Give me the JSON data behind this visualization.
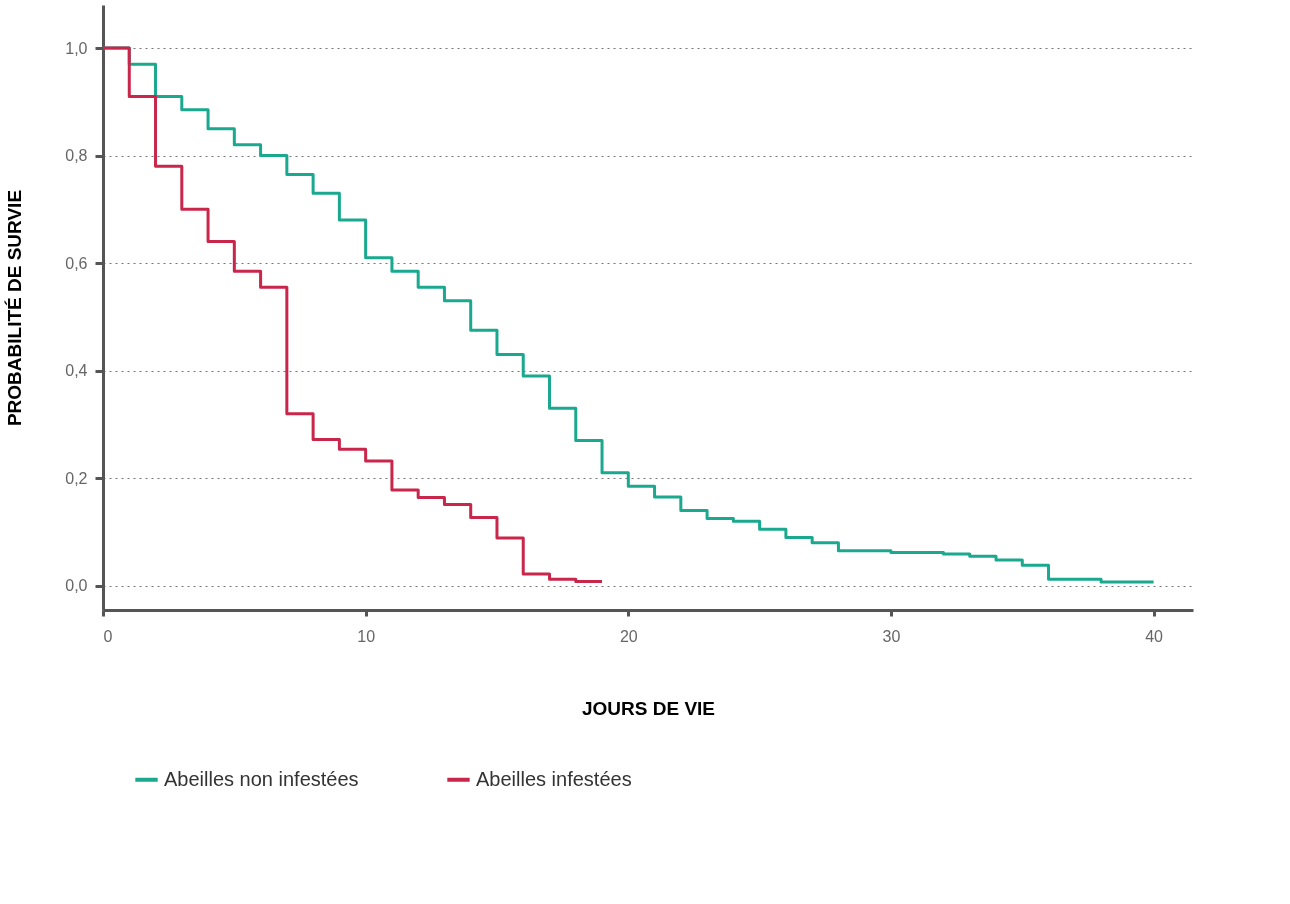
{
  "chart_data": {
    "type": "step",
    "xlabel": "JOURS DE VIE",
    "ylabel": "PROBABILITÉ DE SURVIE",
    "xlim": [
      0,
      41.5
    ],
    "xticks": [
      0,
      10,
      20,
      30,
      40
    ],
    "ylim": [
      -0.045,
      1.08
    ],
    "yticks": [
      {
        "value": 0,
        "label": "0,0"
      },
      {
        "value": 0.2,
        "label": "0,2"
      },
      {
        "value": 0.4,
        "label": "0,4"
      },
      {
        "value": 0.6,
        "label": "0,6"
      },
      {
        "value": 0.8,
        "label": "0,8"
      },
      {
        "value": 1.0,
        "label": "1,0"
      }
    ],
    "grid": "y",
    "legend": "bottom",
    "line_style": "solid",
    "marker": "none",
    "series": [
      {
        "name": "Abeilles non infestées",
        "color": "#1aa88e",
        "x": [
          0,
          1,
          2,
          3,
          4,
          5,
          6,
          7,
          8,
          9,
          10,
          11,
          12,
          13,
          14,
          15,
          16,
          17,
          18,
          19,
          20,
          21,
          22,
          23,
          24,
          25,
          26,
          27,
          28,
          30,
          32,
          33,
          34,
          35,
          36,
          38,
          40
        ],
        "values": [
          1.0,
          0.97,
          0.91,
          0.885,
          0.85,
          0.82,
          0.8,
          0.765,
          0.73,
          0.68,
          0.61,
          0.585,
          0.555,
          0.53,
          0.475,
          0.43,
          0.39,
          0.33,
          0.27,
          0.21,
          0.185,
          0.165,
          0.14,
          0.125,
          0.12,
          0.105,
          0.09,
          0.08,
          0.065,
          0.062,
          0.059,
          0.055,
          0.048,
          0.038,
          0.012,
          0.007,
          0.007
        ]
      },
      {
        "name": "Abeilles infestées",
        "color": "#c8264a",
        "x": [
          0,
          1,
          2,
          3,
          4,
          5,
          6,
          7,
          8,
          9,
          10,
          11,
          12,
          13,
          14,
          15,
          16,
          17,
          18,
          19
        ],
        "values": [
          1.0,
          0.91,
          0.78,
          0.7,
          0.64,
          0.585,
          0.555,
          0.32,
          0.272,
          0.254,
          0.232,
          0.178,
          0.164,
          0.151,
          0.127,
          0.089,
          0.022,
          0.012,
          0.008,
          0.008
        ]
      }
    ]
  }
}
